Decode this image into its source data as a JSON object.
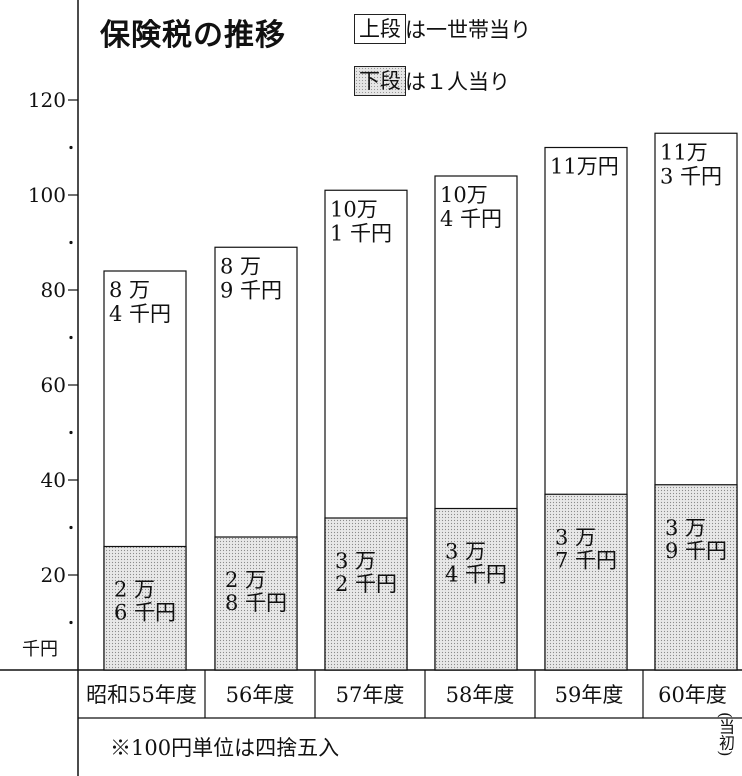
{
  "chart_data": {
    "type": "bar",
    "title": "保険税の推移",
    "legend": {
      "upper": {
        "label": "上段",
        "text": "は一世帯当り"
      },
      "lower": {
        "label": "下段",
        "text": "は１人当り"
      }
    },
    "ylabel": "千円",
    "ylim": [
      0,
      130
    ],
    "yticks": [
      "20",
      "40",
      "60",
      "80",
      "100",
      "120"
    ],
    "categories": [
      "昭和55年度",
      "56年度",
      "57年度",
      "58年度",
      "59年度",
      "60年度"
    ],
    "series": [
      {
        "name": "上段",
        "values": [
          84,
          89,
          101,
          104,
          110,
          113
        ],
        "labels": [
          [
            "8 万",
            "4 千円"
          ],
          [
            "8 万",
            "9 千円"
          ],
          [
            "10万",
            "1 千円"
          ],
          [
            "10万",
            "4 千円"
          ],
          [
            "11万円"
          ],
          [
            "11万",
            "3 千円"
          ]
        ]
      },
      {
        "name": "下段",
        "values": [
          26,
          28,
          32,
          34,
          37,
          39
        ],
        "labels": [
          [
            "2 万",
            "6 千円"
          ],
          [
            "2 万",
            "8 千円"
          ],
          [
            "3 万",
            "2 千円"
          ],
          [
            "3 万",
            "4 千円"
          ],
          [
            "3 万",
            "7 千円"
          ],
          [
            "3 万",
            "9 千円"
          ]
        ]
      }
    ],
    "note": "※100円単位は四捨五入",
    "side_note": "(当初)"
  }
}
